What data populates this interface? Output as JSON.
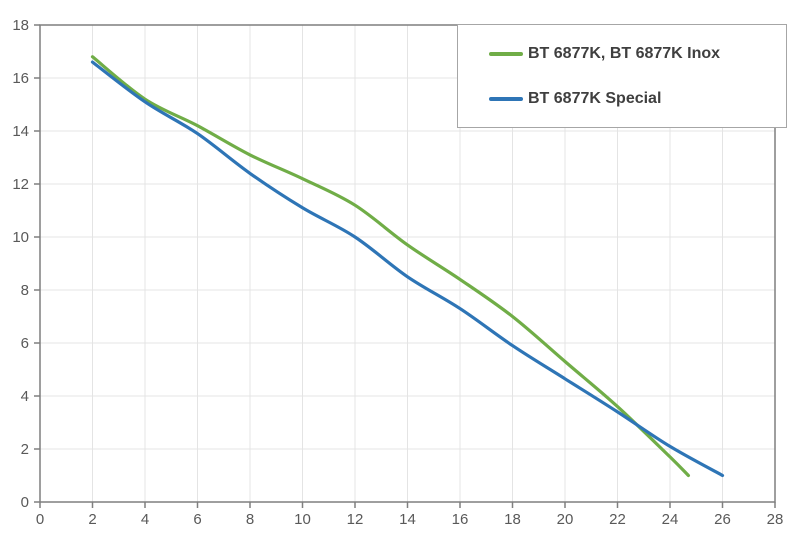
{
  "chart_data": {
    "type": "line",
    "title": "",
    "xlabel": "",
    "ylabel": "",
    "xlim": [
      0,
      28
    ],
    "ylim": [
      0,
      18
    ],
    "xtick_step": 2,
    "ytick_step": 2,
    "grid": true,
    "legend_position": "top-right",
    "series": [
      {
        "name": "BT 6877K, BT 6877K Inox",
        "color": "#70AD47",
        "x": [
          2,
          4,
          6,
          8,
          10,
          12,
          14,
          16,
          18,
          20,
          22,
          24,
          24.7
        ],
        "y": [
          16.8,
          15.2,
          14.2,
          13.1,
          12.2,
          11.2,
          9.7,
          8.4,
          7.0,
          5.3,
          3.6,
          1.7,
          1.0
        ]
      },
      {
        "name": "BT 6877K Special",
        "color": "#2E75B6",
        "x": [
          2,
          4,
          6,
          8,
          10,
          12,
          14,
          16,
          18,
          20,
          22,
          24,
          26
        ],
        "y": [
          16.6,
          15.1,
          13.9,
          12.4,
          11.1,
          10.0,
          8.5,
          7.3,
          5.9,
          4.65,
          3.4,
          2.1,
          1.0
        ]
      }
    ]
  },
  "legend": {
    "items": [
      {
        "label": "BT 6877K, BT 6877K Inox",
        "color": "#70AD47"
      },
      {
        "label": "BT 6877K Special",
        "color": "#2E75B6"
      }
    ],
    "border_color": "#A6A6A6"
  },
  "style": {
    "background": "#FFFFFF",
    "axis_color": "#7F7F7F",
    "grid_color": "#E4E4E4",
    "tick_label_color": "#595959",
    "legend_text_color": "#3F3F3F",
    "line_width": 3.2
  }
}
